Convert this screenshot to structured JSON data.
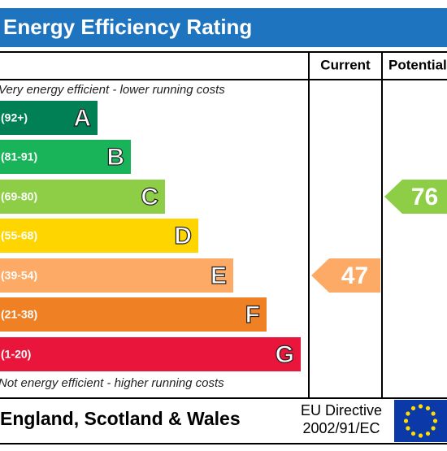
{
  "header": {
    "title": "Energy Efficiency Rating"
  },
  "columns": {
    "current": "Current",
    "potential": "Potential"
  },
  "top_note": "Very energy efficient - lower running costs",
  "bottom_note": "Not energy efficient - higher running costs",
  "bands": [
    {
      "range": "(92+)",
      "letter": "A",
      "color": "#008054"
    },
    {
      "range": "(81-91)",
      "letter": "B",
      "color": "#19b459"
    },
    {
      "range": "(69-80)",
      "letter": "C",
      "color": "#8dce46"
    },
    {
      "range": "(55-68)",
      "letter": "D",
      "color": "#ffd500"
    },
    {
      "range": "(39-54)",
      "letter": "E",
      "color": "#fcaa65"
    },
    {
      "range": "(21-38)",
      "letter": "F",
      "color": "#ef8023"
    },
    {
      "range": "(1-20)",
      "letter": "G",
      "color": "#e9153b"
    }
  ],
  "current": 47,
  "potential": 76,
  "footer": {
    "region": "England, Scotland & Wales",
    "directive_line1": "EU Directive",
    "directive_line2": "2002/91/EC"
  }
}
